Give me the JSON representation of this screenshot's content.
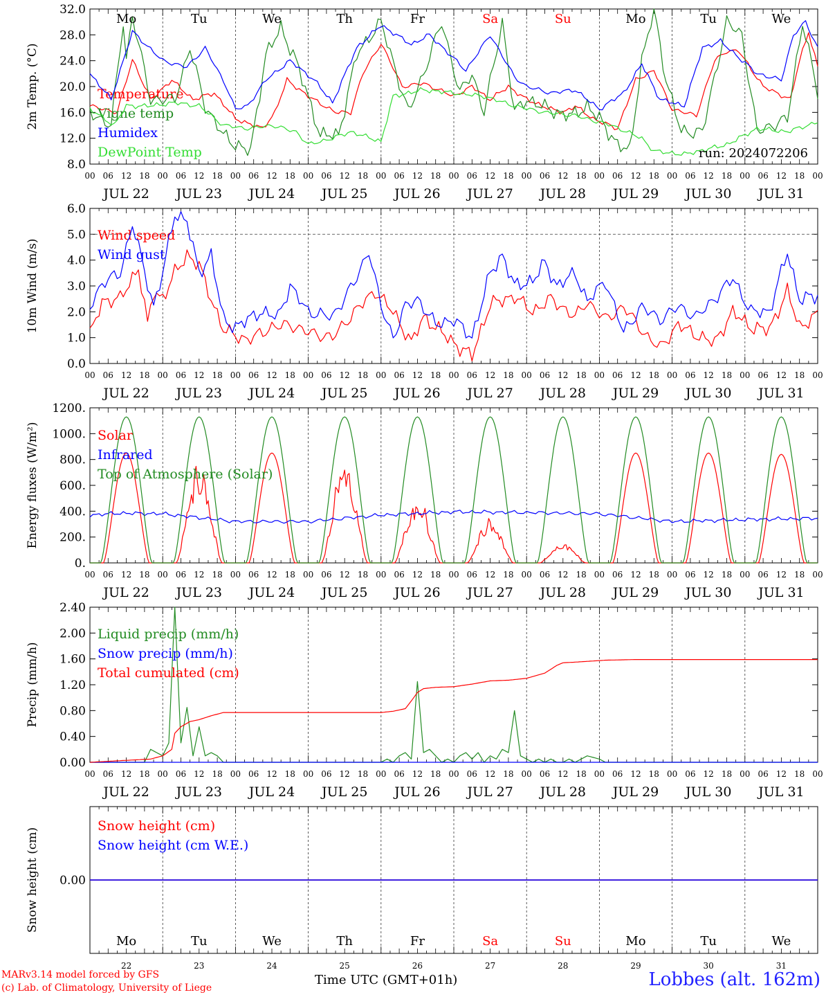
{
  "footer": {
    "credit1": "MARv3.14 model forced by GFS",
    "credit2": "(c) Lab. of Climatology, University of Liege",
    "station": "Lobbes (alt. 162m)",
    "xaxis_title": "Time UTC (GMT+01h)"
  },
  "colors": {
    "red": "#ff0000",
    "green": "#228b22",
    "blue": "#0000ff",
    "lightgreen": "#33dd33",
    "purple": "#800080"
  },
  "chart_data": [
    {
      "type": "line",
      "ylabel": "2m Temp. (°C)",
      "yticks": [
        "32.0",
        "28.0",
        "24.0",
        "20.0",
        "16.0",
        "12.0",
        "8.0"
      ],
      "ylim": [
        8,
        32
      ],
      "grid": "vertical dashed lines at each day boundary",
      "run_label": "run: 2024072206",
      "day_names": [
        "Mo",
        "Tu",
        "We",
        "Th",
        "Fr",
        "Sa",
        "Su",
        "Mo",
        "Tu",
        "We"
      ],
      "weekend_day_names": [
        "Sa",
        "Su"
      ],
      "x_hour_ticks": [
        "00",
        "06",
        "12",
        "18"
      ],
      "x_dates": [
        "JUL 22",
        "JUL 23",
        "JUL 24",
        "JUL 25",
        "JUL 26",
        "JUL 27",
        "JUL 28",
        "JUL 29",
        "JUL 30",
        "JUL 31"
      ],
      "series": [
        {
          "name": "Temperature",
          "color": "#ff0000",
          "x_hours": [
            0,
            9,
            14,
            20,
            27,
            34,
            41,
            48,
            57,
            61,
            65,
            72,
            81,
            86,
            90,
            96,
            103,
            110,
            120,
            126,
            132,
            138,
            144,
            152,
            156,
            160,
            166,
            174,
            180,
            186,
            192,
            200,
            206,
            210,
            214,
            222,
            231,
            234,
            237,
            240
          ],
          "values": [
            17,
            16,
            24.2,
            18,
            21,
            18,
            19,
            15,
            13.5,
            16,
            21,
            18.5,
            16,
            16,
            22,
            26.7,
            20,
            20.5,
            18.5,
            20,
            18,
            20,
            18,
            16.5,
            16,
            17,
            15,
            13.5,
            21,
            22.5,
            16.5,
            15.5,
            24,
            25.5,
            25.5,
            20,
            18,
            24,
            28.5,
            23
          ]
        },
        {
          "name": "Vigne temp",
          "color": "#228b22",
          "x_hours": [
            0,
            7,
            11,
            12,
            14,
            20,
            28,
            33,
            38,
            44,
            48,
            53,
            58,
            63,
            68,
            76,
            82,
            88,
            96,
            105,
            110,
            116,
            122,
            126,
            130,
            136,
            140,
            144,
            154,
            159,
            164,
            168,
            174,
            178,
            182,
            186,
            190,
            195,
            202,
            210,
            215,
            220,
            230,
            235,
            240
          ],
          "values": [
            16,
            14,
            30,
            24,
            31,
            18,
            18,
            26,
            17,
            12.5,
            11,
            10,
            25,
            29,
            24,
            12.5,
            12.5,
            25,
            30,
            16,
            22,
            30,
            19,
            22,
            16,
            30,
            16,
            18,
            16,
            15.5,
            17,
            15,
            11,
            10,
            24,
            32,
            21,
            13,
            13,
            30,
            28,
            13,
            15,
            30,
            19
          ]
        },
        {
          "name": "Humidex",
          "color": "#0000ff",
          "x_hours": [
            0,
            7,
            14,
            24,
            32,
            38,
            45,
            48,
            52,
            58,
            66,
            74,
            80,
            88,
            96,
            106,
            112,
            124,
            132,
            140,
            144,
            152,
            160,
            168,
            176,
            182,
            188,
            196,
            202,
            208,
            214,
            220,
            228,
            232,
            236,
            240
          ],
          "values": [
            22,
            18,
            28.5,
            24,
            23,
            26,
            20,
            16.5,
            17,
            21,
            24,
            21,
            17.5,
            26,
            29.5,
            26.5,
            28,
            22.5,
            28,
            21.5,
            20,
            19,
            19.5,
            16.5,
            19,
            23.5,
            18,
            17,
            26,
            27,
            24.5,
            22,
            21,
            28,
            30,
            26
          ]
        },
        {
          "name": "DewPoint Temp",
          "color": "#33dd33",
          "x_hours": [
            0,
            8,
            12,
            20,
            28,
            36,
            44,
            52,
            60,
            68,
            72,
            80,
            86,
            96,
            100,
            110,
            120,
            130,
            140,
            150,
            160,
            172,
            182,
            186,
            196,
            210,
            220,
            230,
            240
          ],
          "values": [
            16.5,
            14,
            17,
            17,
            17.5,
            17,
            14,
            13.5,
            14,
            13,
            11,
            12,
            13,
            11.5,
            18.5,
            19.5,
            19,
            18.5,
            17,
            16,
            15.5,
            14,
            12,
            10,
            9.5,
            11,
            13.5,
            13,
            14.5
          ]
        }
      ]
    },
    {
      "type": "line",
      "ylabel": "10m Wind (m/s)",
      "yticks": [
        "6.0",
        "5.0",
        "4.0",
        "3.0",
        "2.0",
        "1.0",
        "0.0"
      ],
      "ylim": [
        0,
        6
      ],
      "reference_line": 5.0,
      "x_hour_ticks": [
        "00",
        "06",
        "12",
        "18"
      ],
      "x_dates": [
        "JUL 22",
        "JUL 23",
        "JUL 24",
        "JUL 25",
        "JUL 26",
        "JUL 27",
        "JUL 28",
        "JUL 29",
        "JUL 30",
        "JUL 31"
      ],
      "series": [
        {
          "name": "Wind speed",
          "color": "#ff0000",
          "x_hours": [
            0,
            4,
            10,
            16,
            19,
            21,
            24,
            28,
            32,
            36,
            40,
            44,
            48,
            52,
            60,
            66,
            72,
            80,
            88,
            94,
            100,
            106,
            110,
            116,
            122,
            126,
            132,
            140,
            146,
            152,
            160,
            164,
            170,
            176,
            184,
            188,
            194,
            200,
            206,
            212,
            218,
            224,
            230,
            234,
            240
          ],
          "values": [
            1.1,
            2.4,
            2.5,
            3.7,
            1.5,
            2.8,
            2.5,
            3.5,
            4.2,
            3.8,
            2.5,
            1.3,
            1.1,
            0.9,
            1.4,
            1.5,
            1.2,
            1.0,
            2.1,
            2.8,
            2.0,
            0.8,
            1.8,
            1.2,
            0.6,
            0.3,
            2.3,
            2.6,
            2.0,
            2.5,
            1.8,
            2.4,
            1.7,
            2.2,
            1.0,
            0.6,
            1.5,
            1.1,
            0.8,
            2.0,
            1.4,
            1.3,
            2.8,
            1.4,
            1.9
          ]
        },
        {
          "name": "Wind gust",
          "color": "#0000ff",
          "x_hours": [
            0,
            4,
            10,
            14,
            16,
            21,
            24,
            28,
            32,
            36,
            40,
            44,
            48,
            56,
            62,
            66,
            72,
            80,
            88,
            92,
            96,
            100,
            104,
            108,
            114,
            120,
            126,
            132,
            136,
            140,
            146,
            150,
            154,
            160,
            164,
            170,
            176,
            182,
            188,
            194,
            200,
            206,
            212,
            218,
            224,
            230,
            234,
            240
          ],
          "values": [
            2.2,
            3.1,
            3.5,
            5.4,
            4.5,
            2.2,
            3.5,
            5.8,
            5.5,
            3.5,
            4.2,
            1.7,
            1.4,
            2.0,
            1.8,
            3.0,
            2.0,
            1.8,
            3.3,
            4.4,
            2.2,
            1.0,
            2.2,
            2.5,
            1.5,
            1.7,
            1.0,
            3.5,
            4.2,
            3.0,
            3.2,
            3.9,
            3.0,
            3.5,
            2.4,
            3.2,
            1.2,
            2.2,
            1.7,
            2.2,
            1.8,
            2.5,
            3.3,
            2.0,
            2.0,
            4.3,
            2.5,
            2.6
          ]
        }
      ]
    },
    {
      "type": "line",
      "ylabel": "Energy fluxes (W/m²)",
      "yticks": [
        "1200.",
        "1000.",
        "800.",
        "600.",
        "400.",
        "200.",
        "0."
      ],
      "ylim": [
        0,
        1200
      ],
      "x_hour_ticks": [
        "00",
        "06",
        "12",
        "18"
      ],
      "x_dates": [
        "JUL 22",
        "JUL 23",
        "JUL 24",
        "JUL 25",
        "JUL 26",
        "JUL 27",
        "JUL 28",
        "JUL 29",
        "JUL 30",
        "JUL 31"
      ],
      "series": [
        {
          "name": "Solar",
          "color": "#ff0000",
          "daily_peak_hour": 12,
          "daily_halfwidth_hours": 7.5,
          "daily_peaks": [
            850,
            800,
            850,
            830,
            520,
            360,
            160,
            850,
            850,
            840
          ]
        },
        {
          "name": "Infrared",
          "color": "#0000ff",
          "x_hours": [
            0,
            10,
            24,
            48,
            72,
            96,
            120,
            144,
            168,
            192,
            216,
            240
          ],
          "values": [
            370,
            385,
            380,
            320,
            320,
            370,
            395,
            390,
            380,
            320,
            335,
            345
          ]
        },
        {
          "name": "Top of Atmosphere (Solar)",
          "color": "#228b22",
          "daily_peak_hour": 12,
          "daily_halfwidth_hours": 8.4,
          "peak": 1130
        }
      ]
    },
    {
      "type": "line",
      "ylabel": "Precip (mm/h)",
      "yticks": [
        "2.40",
        "2.00",
        "1.60",
        "1.20",
        "0.80",
        "0.40",
        "0.00"
      ],
      "ylim": [
        0,
        2.4
      ],
      "x_hour_ticks": [
        "00",
        "06",
        "12",
        "18"
      ],
      "x_dates": [
        "JUL 22",
        "JUL 23",
        "JUL 24",
        "JUL 25",
        "JUL 26",
        "JUL 27",
        "JUL 28",
        "JUL 29",
        "JUL 30",
        "JUL 31"
      ],
      "series": [
        {
          "name": "Liquid precip (mm/h)",
          "color": "#228b22",
          "x_hours": [
            0,
            18,
            20,
            22,
            24,
            26,
            28,
            30,
            32,
            34,
            36,
            38,
            40,
            42,
            44,
            96,
            98,
            100,
            102,
            104,
            106,
            108,
            110,
            112,
            114,
            116,
            118,
            120,
            122,
            124,
            126,
            128,
            130,
            132,
            134,
            136,
            138,
            140,
            142,
            144,
            146,
            148,
            150,
            152,
            154,
            156,
            158,
            160,
            164,
            168,
            170,
            240
          ],
          "values": [
            0,
            0,
            0.2,
            0.15,
            0.1,
            0.3,
            2.4,
            0.3,
            0.85,
            0.1,
            0.55,
            0.1,
            0.15,
            0.1,
            0,
            0,
            0.05,
            0,
            0.1,
            0.15,
            0.05,
            1.25,
            0.15,
            0.2,
            0.1,
            0,
            0.05,
            0,
            0.1,
            0.15,
            0.05,
            0.15,
            0,
            0.1,
            0.05,
            0.2,
            0.15,
            0.8,
            0.1,
            0.05,
            0,
            0.05,
            0,
            0.05,
            0,
            0,
            0.05,
            0,
            0.1,
            0.05,
            0,
            0
          ]
        },
        {
          "name": "Snow precip (mm/h)",
          "color": "#0000ff",
          "x_hours": [
            0,
            240
          ],
          "values": [
            0,
            0
          ]
        },
        {
          "name": "Total cumulated (cm)",
          "color": "#ff0000",
          "x_hours": [
            0,
            20,
            24,
            27,
            28,
            30,
            33,
            36,
            40,
            44,
            96,
            100,
            104,
            106,
            108,
            110,
            114,
            120,
            126,
            132,
            138,
            144,
            150,
            154,
            156,
            160,
            170,
            180,
            240
          ],
          "values": [
            0,
            0.05,
            0.1,
            0.2,
            0.45,
            0.55,
            0.63,
            0.66,
            0.72,
            0.77,
            0.77,
            0.79,
            0.83,
            0.95,
            1.08,
            1.14,
            1.16,
            1.17,
            1.21,
            1.26,
            1.27,
            1.3,
            1.38,
            1.5,
            1.54,
            1.55,
            1.58,
            1.59,
            1.59
          ]
        }
      ]
    },
    {
      "type": "line",
      "ylabel": "Snow height (cm)",
      "yticks": [
        "0.00"
      ],
      "ylim": [
        -1,
        1
      ],
      "day_names": [
        "Mo",
        "Tu",
        "We",
        "Th",
        "Fr",
        "Sa",
        "Su",
        "Mo",
        "Tu",
        "We"
      ],
      "day_numbers": [
        "22",
        "23",
        "24",
        "25",
        "26",
        "27",
        "28",
        "29",
        "30",
        "31"
      ],
      "series": [
        {
          "name": "Snow height (cm)",
          "color": "#ff0000",
          "x_hours": [
            0,
            240
          ],
          "values": [
            0,
            0
          ]
        },
        {
          "name": "Snow height (cm W.E.)",
          "color": "#0000ff",
          "x_hours": [
            0,
            240
          ],
          "values": [
            0,
            0
          ]
        }
      ]
    }
  ]
}
